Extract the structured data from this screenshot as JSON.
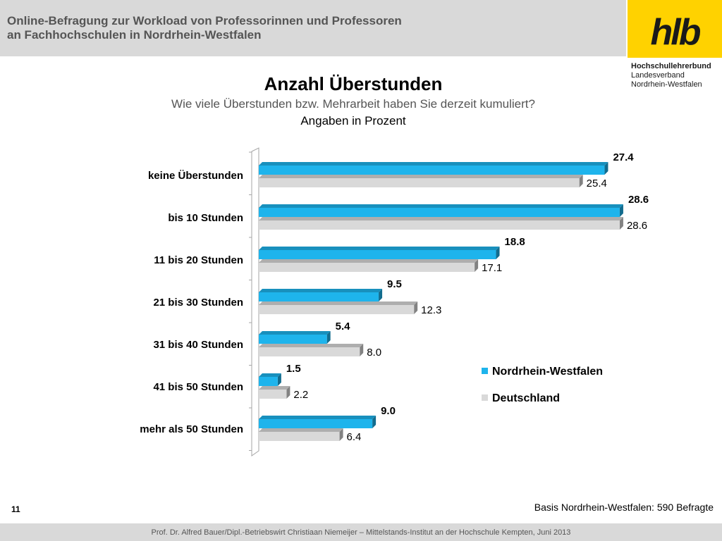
{
  "header": {
    "title": "Online-Befragung  zur  Workload von Professorinnen und Professoren\nan Fachhochschulen in Nordrhein-Westfalen"
  },
  "logo": {
    "text": "hlb",
    "org_name": "Hochschullehrerbund",
    "org_line2": "Landesverband",
    "org_line3": "Nordrhein-Westfalen"
  },
  "chart_data": {
    "type": "bar",
    "orientation": "horizontal",
    "title": "Anzahl Überstunden",
    "subtitle": "Wie viele Überstunden bzw. Mehrarbeit haben Sie derzeit kumuliert?",
    "unit_label": "Angaben in Prozent",
    "categories": [
      "keine Überstunden",
      "bis 10 Stunden",
      "11 bis 20 Stunden",
      "21 bis 30 Stunden",
      "31 bis 40 Stunden",
      "41 bis 50 Stunden",
      "mehr als 50 Stunden"
    ],
    "series": [
      {
        "name": "Nordrhein-Westfalen",
        "color": "#1eb4ec",
        "values": [
          27.4,
          28.6,
          18.8,
          9.5,
          5.4,
          1.5,
          9.0
        ]
      },
      {
        "name": "Deutschland",
        "color": "#d9d9d9",
        "values": [
          25.4,
          28.6,
          17.1,
          12.3,
          8.0,
          2.2,
          6.4
        ]
      }
    ],
    "xlim": [
      0,
      30
    ],
    "grid": false,
    "legend_position": "right"
  },
  "footer": {
    "page_number": "11",
    "basis": "Basis Nordrhein-Westfalen: 590 Befragte",
    "credit": "Prof. Dr. Alfred Bauer/Dipl.-Betriebswirt Christiaan Niemeijer – Mittelstands-Institut an der Hochschule Kempten, Juni 2013"
  }
}
